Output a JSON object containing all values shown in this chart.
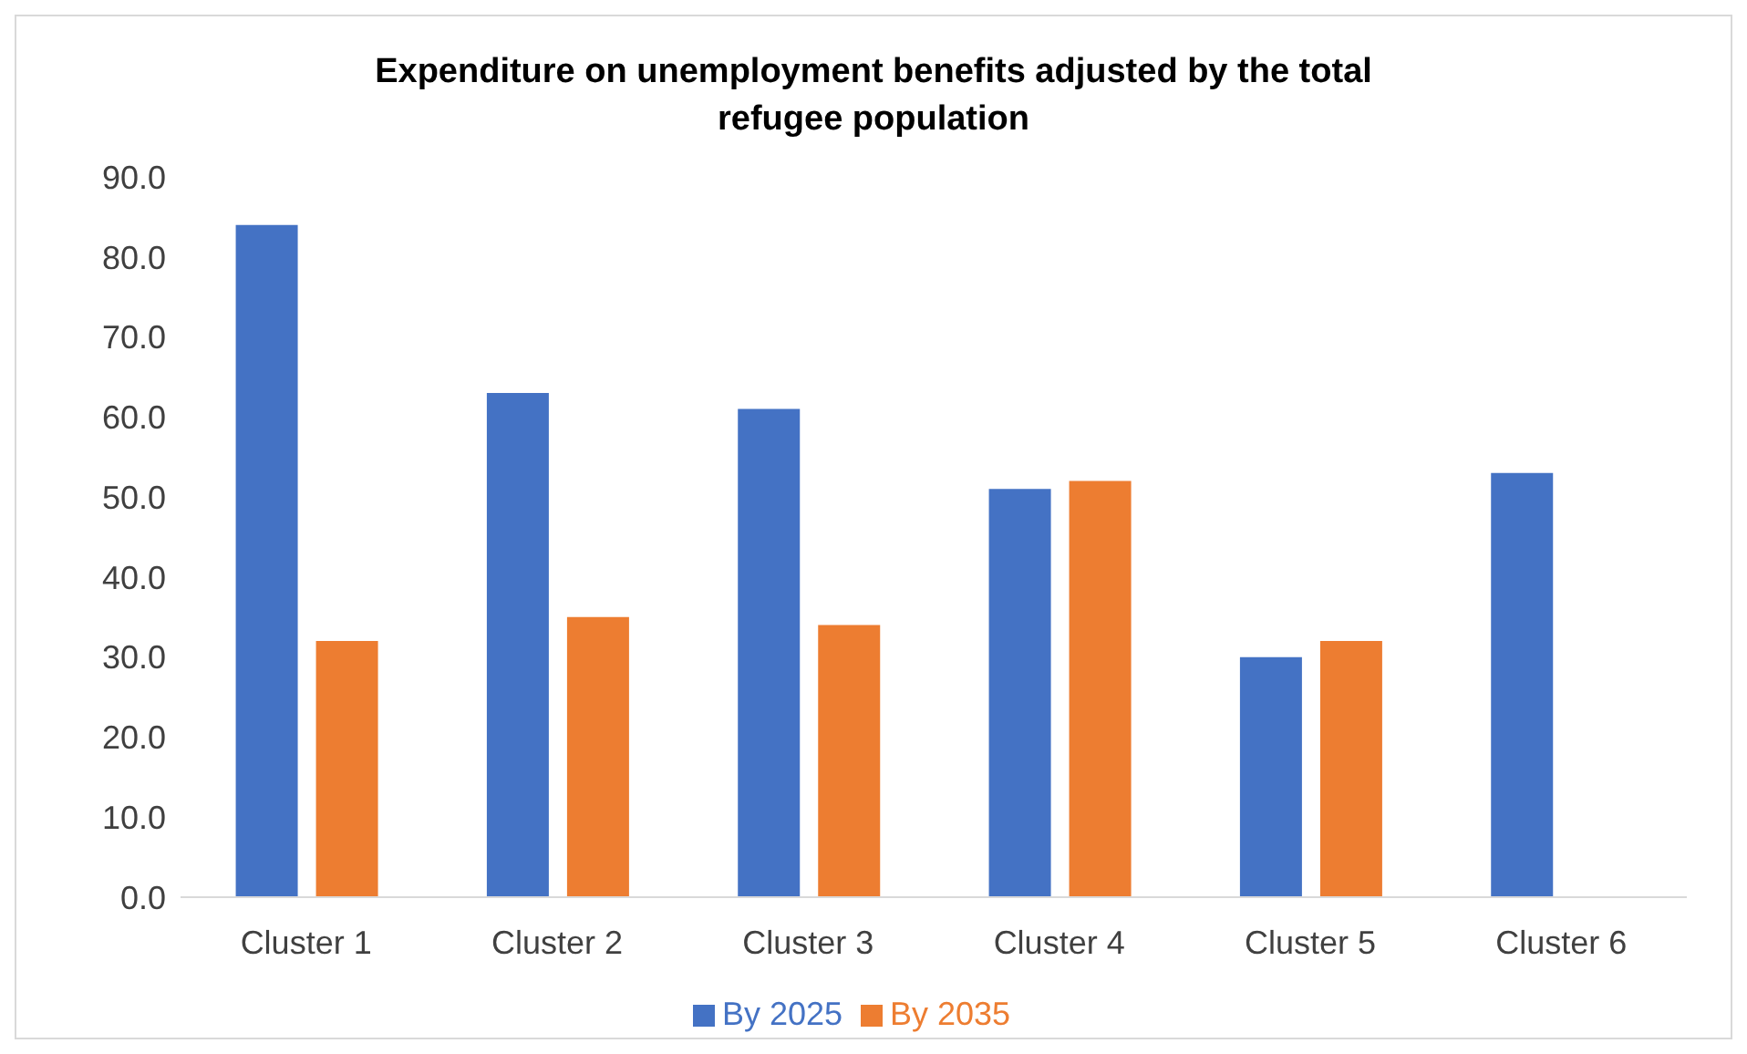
{
  "chart_data": {
    "type": "bar",
    "title": "Expenditure on unemployment benefits adjusted by the total refugee population",
    "categories": [
      "Cluster 1",
      "Cluster 2",
      "Cluster 3",
      "Cluster 4",
      "Cluster 5",
      "Cluster 6"
    ],
    "series": [
      {
        "name": "By 2025",
        "color": "#4472c4",
        "values": [
          84,
          63,
          61,
          51,
          30,
          53
        ]
      },
      {
        "name": "By 2035",
        "color": "#ed7d31",
        "values": [
          32,
          35,
          34,
          52,
          32,
          null
        ]
      }
    ],
    "ylim": [
      0,
      90
    ],
    "yticks": [
      {
        "value": 0,
        "label": "0.0"
      },
      {
        "value": 10,
        "label": "10.0"
      },
      {
        "value": 20,
        "label": "20.0"
      },
      {
        "value": 30,
        "label": "30.0"
      },
      {
        "value": 40,
        "label": "40.0"
      },
      {
        "value": 50,
        "label": "50.0"
      },
      {
        "value": 60,
        "label": "60.0"
      },
      {
        "value": 70,
        "label": "70.0"
      },
      {
        "value": 80,
        "label": "80.0"
      },
      {
        "value": 90,
        "label": "90.0"
      }
    ],
    "grid": false,
    "legend": "bottom"
  }
}
